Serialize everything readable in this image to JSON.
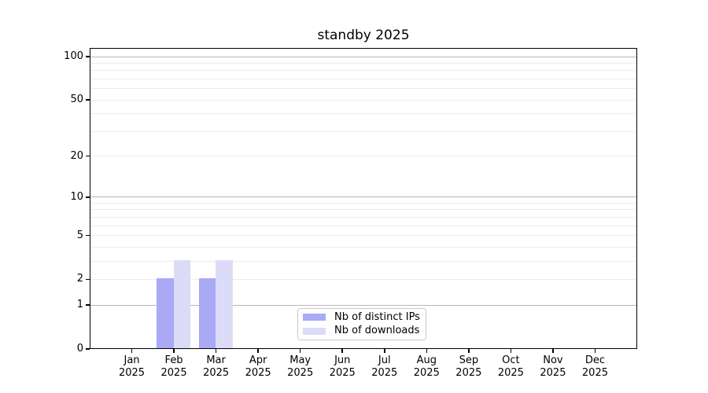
{
  "title": "standby 2025",
  "chart_data": {
    "type": "bar",
    "title": "standby 2025",
    "categories": [
      "Jan",
      "Feb",
      "Mar",
      "Apr",
      "May",
      "Jun",
      "Jul",
      "Aug",
      "Sep",
      "Oct",
      "Nov",
      "Dec"
    ],
    "year_label": "2025",
    "series": [
      {
        "name": "Nb of distinct IPs",
        "color": "#a9a9f6",
        "values": [
          0,
          2,
          2,
          0,
          0,
          0,
          0,
          0,
          0,
          0,
          0,
          0
        ]
      },
      {
        "name": "Nb of downloads",
        "color": "#dcdcf8",
        "values": [
          0,
          3,
          3,
          0,
          0,
          0,
          0,
          0,
          0,
          0,
          0,
          0
        ]
      }
    ],
    "y_axis": {
      "scale": "log1p",
      "tick_values": [
        100,
        50,
        20,
        10,
        5,
        2,
        1,
        0
      ],
      "major_grid_values": [
        1,
        10,
        100
      ],
      "minor_grid_values": [
        2,
        3,
        4,
        5,
        6,
        7,
        8,
        9,
        20,
        30,
        40,
        50,
        60,
        70,
        80,
        90
      ],
      "ylim": [
        0,
        115
      ]
    },
    "grid": true,
    "legend_position": "lower center",
    "colors": {
      "background": "#ffffff",
      "spine": "#000000",
      "text": "#000000",
      "major_grid": "#b6b6b6",
      "minor_grid": "#ececec",
      "legend_border": "#c9c9c9"
    }
  }
}
